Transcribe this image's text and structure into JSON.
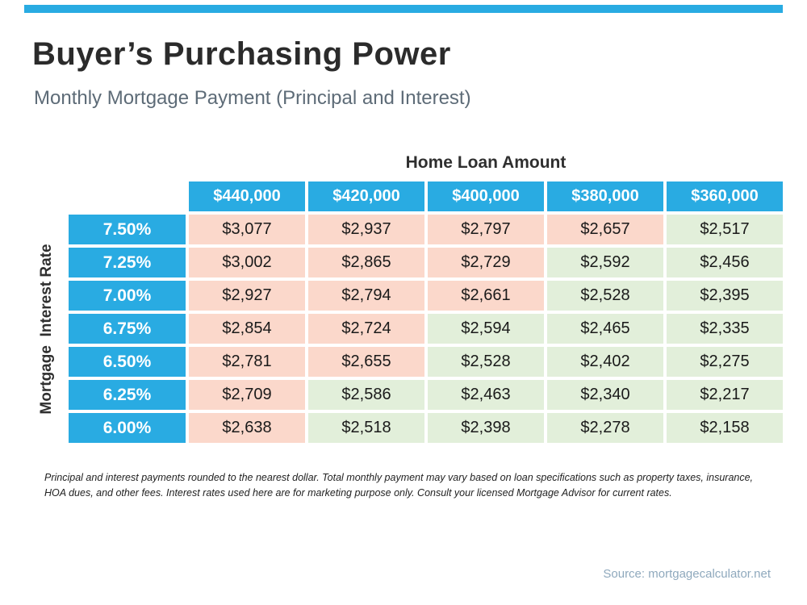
{
  "header": {
    "title": "Buyer’s Purchasing Power",
    "subtitle": "Monthly Mortgage Payment (Principal and Interest)"
  },
  "chart_data": {
    "type": "table",
    "title": "Home Loan Amount",
    "row_axis_label": "Mortgage  Interest Rate",
    "columns": [
      "$440,000",
      "$420,000",
      "$400,000",
      "$380,000",
      "$360,000"
    ],
    "rows": [
      {
        "rate": "7.50%",
        "values": [
          "$3,077",
          "$2,937",
          "$2,797",
          "$2,657",
          "$2,517"
        ],
        "tones": [
          "red",
          "red",
          "red",
          "red",
          "green"
        ]
      },
      {
        "rate": "7.25%",
        "values": [
          "$3,002",
          "$2,865",
          "$2,729",
          "$2,592",
          "$2,456"
        ],
        "tones": [
          "red",
          "red",
          "red",
          "green",
          "green"
        ]
      },
      {
        "rate": "7.00%",
        "values": [
          "$2,927",
          "$2,794",
          "$2,661",
          "$2,528",
          "$2,395"
        ],
        "tones": [
          "red",
          "red",
          "red",
          "green",
          "green"
        ]
      },
      {
        "rate": "6.75%",
        "values": [
          "$2,854",
          "$2,724",
          "$2,594",
          "$2,465",
          "$2,335"
        ],
        "tones": [
          "red",
          "red",
          "green",
          "green",
          "green"
        ]
      },
      {
        "rate": "6.50%",
        "values": [
          "$2,781",
          "$2,655",
          "$2,528",
          "$2,402",
          "$2,275"
        ],
        "tones": [
          "red",
          "red",
          "green",
          "green",
          "green"
        ]
      },
      {
        "rate": "6.25%",
        "values": [
          "$2,709",
          "$2,586",
          "$2,463",
          "$2,340",
          "$2,217"
        ],
        "tones": [
          "red",
          "green",
          "green",
          "green",
          "green"
        ]
      },
      {
        "rate": "6.00%",
        "values": [
          "$2,638",
          "$2,518",
          "$2,398",
          "$2,278",
          "$2,158"
        ],
        "tones": [
          "red",
          "green",
          "green",
          "green",
          "green"
        ]
      }
    ]
  },
  "colors": {
    "accent_blue": "#29abe2",
    "cell_red": "#fbd8cb",
    "cell_green": "#e2efda"
  },
  "footnote": "Principal and interest payments rounded to the nearest dollar. Total monthly payment may vary based on loan specifications such as property taxes, insurance, HOA dues, and other fees. Interest rates used here are for marketing purpose only. Consult your licensed Mortgage Advisor for current rates.",
  "source": "Source: mortgagecalculator.net"
}
